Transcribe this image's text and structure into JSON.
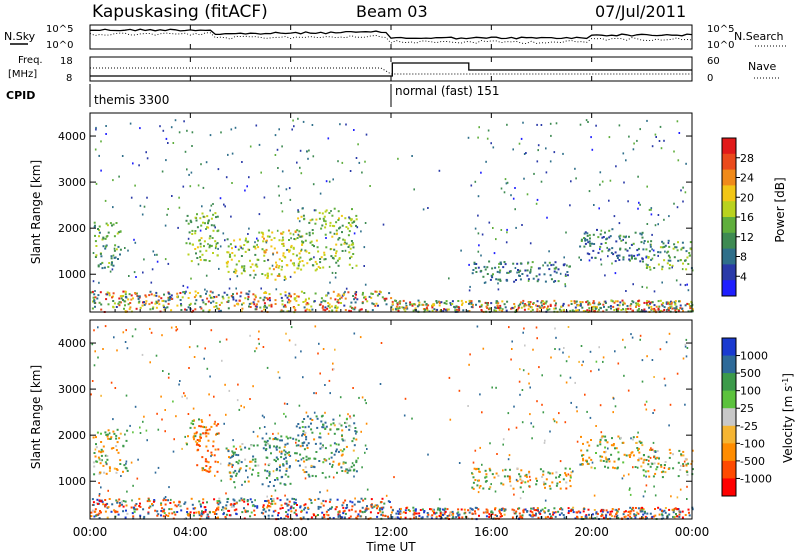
{
  "header": {
    "station": "Kapuskasing (fitACF)",
    "beam": "Beam 03",
    "date": "07/Jul/2011"
  },
  "noise_panel": {
    "left_label": "N.Sky",
    "right_label": "N.Search",
    "left_ticks": [
      "10^5",
      "10^0"
    ],
    "right_ticks": [
      "10^5",
      "10^0"
    ]
  },
  "freq_panel": {
    "left_label_top": "Freq.",
    "left_label_unit": "[MHz]",
    "right_label": "Nave",
    "left_ticks": [
      "18",
      "8"
    ],
    "right_ticks": [
      "60",
      "0"
    ]
  },
  "cpid": {
    "label": "CPID",
    "segments": [
      {
        "text": "themis 3300",
        "start_hour": 0
      },
      {
        "text": "normal (fast) 151",
        "start_hour": 12
      }
    ]
  },
  "colors": {
    "power_scale": [
      "#1f1fff",
      "#2a3aa8",
      "#2f6f8a",
      "#3e8a52",
      "#5fae3c",
      "#b9d21e",
      "#f2c616",
      "#f08a1a",
      "#ea4a1c",
      "#e11a1a"
    ],
    "velocity_scale": [
      "#ff0000",
      "#ff4a00",
      "#ff8c00",
      "#f5b533",
      "#c8c8c8",
      "#5cc23d",
      "#3c9a4a",
      "#2e6a99",
      "#1a3ad0"
    ]
  },
  "chart_data": [
    {
      "type": "heatmap",
      "name": "power",
      "xlabel": "",
      "ylabel": "Slant Range [km]",
      "xlim": [
        0,
        24
      ],
      "ylim": [
        180,
        4500
      ],
      "yticks": [
        1000,
        2000,
        3000,
        4000
      ],
      "colorbar": {
        "label": "Power [dB]",
        "ticks": [
          "28",
          "24",
          "20",
          "16",
          "12",
          "8",
          "4"
        ],
        "range": [
          0,
          30
        ]
      },
      "echo_regions": [
        {
          "t0": 0.1,
          "t1": 1.2,
          "r0": 1150,
          "r1": 2150,
          "value": 12
        },
        {
          "t0": 3.8,
          "t1": 5.1,
          "r0": 1300,
          "r1": 2350,
          "value": 14
        },
        {
          "t0": 5.4,
          "t1": 6.7,
          "r0": 1000,
          "r1": 1850,
          "value": 16
        },
        {
          "t0": 6.8,
          "t1": 8.2,
          "r0": 900,
          "r1": 2000,
          "value": 18
        },
        {
          "t0": 8.2,
          "t1": 9.4,
          "r0": 1100,
          "r1": 2450,
          "value": 15
        },
        {
          "t0": 9.5,
          "t1": 10.6,
          "r0": 1200,
          "r1": 2450,
          "value": 14
        },
        {
          "t0": 15.2,
          "t1": 19.2,
          "r0": 850,
          "r1": 1300,
          "value": 8
        },
        {
          "t0": 19.5,
          "t1": 22.0,
          "r0": 1300,
          "r1": 2000,
          "value": 8
        },
        {
          "t0": 22.0,
          "t1": 24.0,
          "r0": 1100,
          "r1": 1750,
          "value": 12
        }
      ]
    },
    {
      "type": "heatmap",
      "name": "velocity",
      "xlabel": "Time UT",
      "ylabel": "Slant Range [km]",
      "xlim": [
        0,
        24
      ],
      "ylim": [
        180,
        4500
      ],
      "xticks": [
        "00:00",
        "04:00",
        "08:00",
        "12:00",
        "16:00",
        "20:00",
        "00:00"
      ],
      "yticks": [
        1000,
        2000,
        3000,
        4000
      ],
      "colorbar": {
        "label": "Velocity [m s^-1]",
        "ticks": [
          "1000",
          "500",
          "100",
          "25",
          "-25",
          "-100",
          "-500",
          "-1000"
        ],
        "range": [
          -1000,
          1000
        ]
      },
      "echo_regions": [
        {
          "t0": 0.1,
          "t1": 1.5,
          "r0": 1150,
          "r1": 2150,
          "value": 0
        },
        {
          "t0": 3.8,
          "t1": 4.6,
          "r0": 1800,
          "r1": 2450,
          "value": 0
        },
        {
          "t0": 4.2,
          "t1": 5.1,
          "r0": 1200,
          "r1": 2300,
          "value": -400
        },
        {
          "t0": 5.4,
          "t1": 6.7,
          "r0": 1000,
          "r1": 1850,
          "value": 150
        },
        {
          "t0": 6.8,
          "t1": 8.2,
          "r0": 900,
          "r1": 2000,
          "value": 250
        },
        {
          "t0": 8.2,
          "t1": 9.4,
          "r0": 1100,
          "r1": 2450,
          "value": 200
        },
        {
          "t0": 9.5,
          "t1": 10.6,
          "r0": 1200,
          "r1": 2450,
          "value": 150
        },
        {
          "t0": 15.2,
          "t1": 19.2,
          "r0": 850,
          "r1": 1300,
          "value": -20
        },
        {
          "t0": 19.5,
          "t1": 22.0,
          "r0": 1300,
          "r1": 2000,
          "value": 0
        },
        {
          "t0": 22.0,
          "t1": 24.0,
          "r0": 1100,
          "r1": 1750,
          "value": 10
        }
      ]
    }
  ]
}
